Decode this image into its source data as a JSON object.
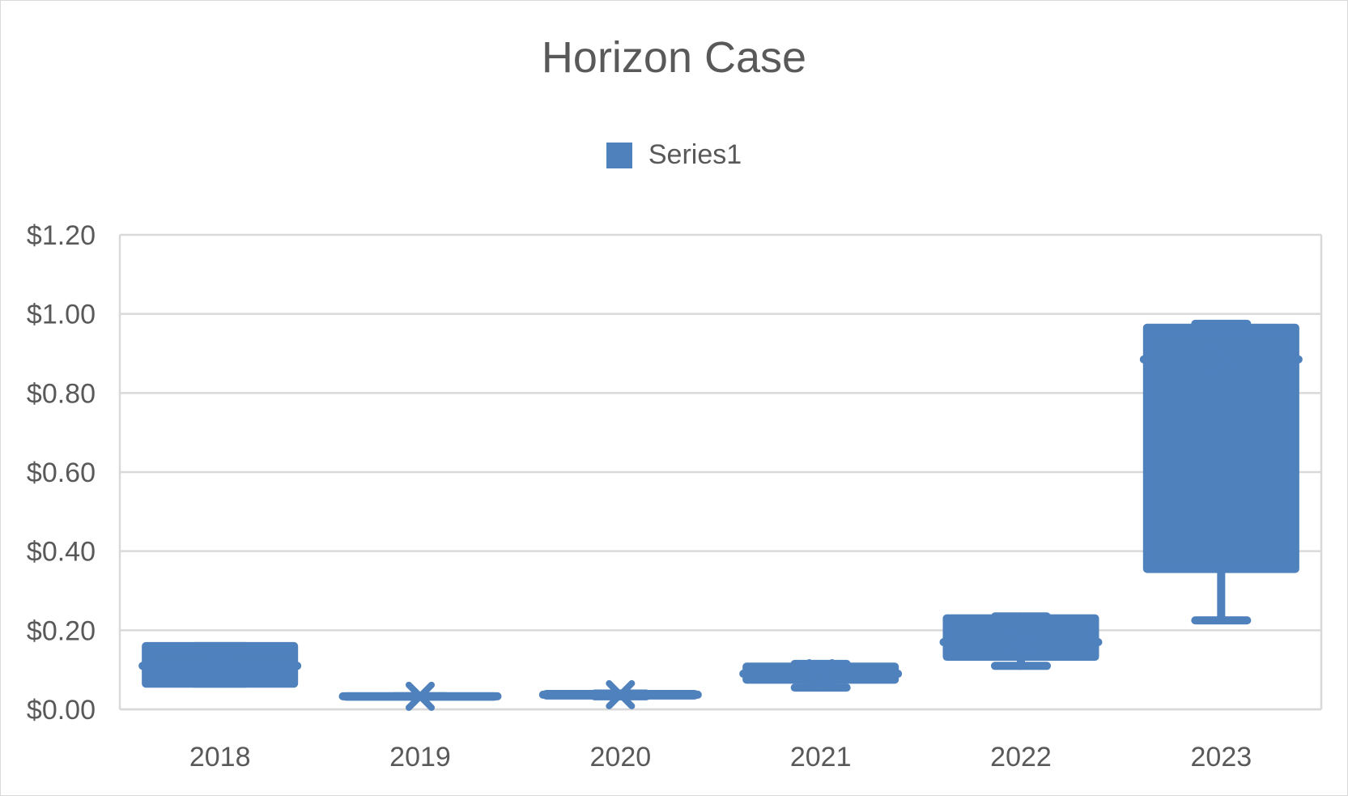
{
  "chart_data": {
    "type": "box",
    "title": "Horizon Case",
    "xlabel": "",
    "ylabel": "",
    "ylim": [
      0,
      1.2
    ],
    "yticks": [
      "$0.00",
      "$0.20",
      "$0.40",
      "$0.60",
      "$0.80",
      "$1.00",
      "$1.20"
    ],
    "ytick_values": [
      0,
      0.2,
      0.4,
      0.6,
      0.8,
      1.0,
      1.2
    ],
    "grid": true,
    "legend_position": "top",
    "series_color": "#4f81bd",
    "categories": [
      "2018",
      "2019",
      "2020",
      "2021",
      "2022",
      "2023"
    ],
    "series": [
      {
        "name": "Series1",
        "boxes": [
          {
            "category": "2018",
            "min": 0.065,
            "q1": 0.065,
            "median": 0.11,
            "q3": 0.16,
            "max": 0.16,
            "mean": 0.11
          },
          {
            "category": "2019",
            "min": 0.033,
            "q1": 0.033,
            "median": 0.033,
            "q3": 0.033,
            "max": 0.033,
            "mean": 0.033
          },
          {
            "category": "2020",
            "min": 0.033,
            "q1": 0.035,
            "median": 0.037,
            "q3": 0.039,
            "max": 0.04,
            "mean": 0.037
          },
          {
            "category": "2021",
            "min": 0.055,
            "q1": 0.075,
            "median": 0.09,
            "q3": 0.108,
            "max": 0.115,
            "mean": 0.09
          },
          {
            "category": "2022",
            "min": 0.11,
            "q1": 0.133,
            "median": 0.17,
            "q3": 0.23,
            "max": 0.235,
            "mean": 0.17
          },
          {
            "category": "2023",
            "min": 0.225,
            "q1": 0.355,
            "median": 0.885,
            "q3": 0.965,
            "max": 0.975,
            "mean": 0.885
          }
        ]
      }
    ]
  }
}
